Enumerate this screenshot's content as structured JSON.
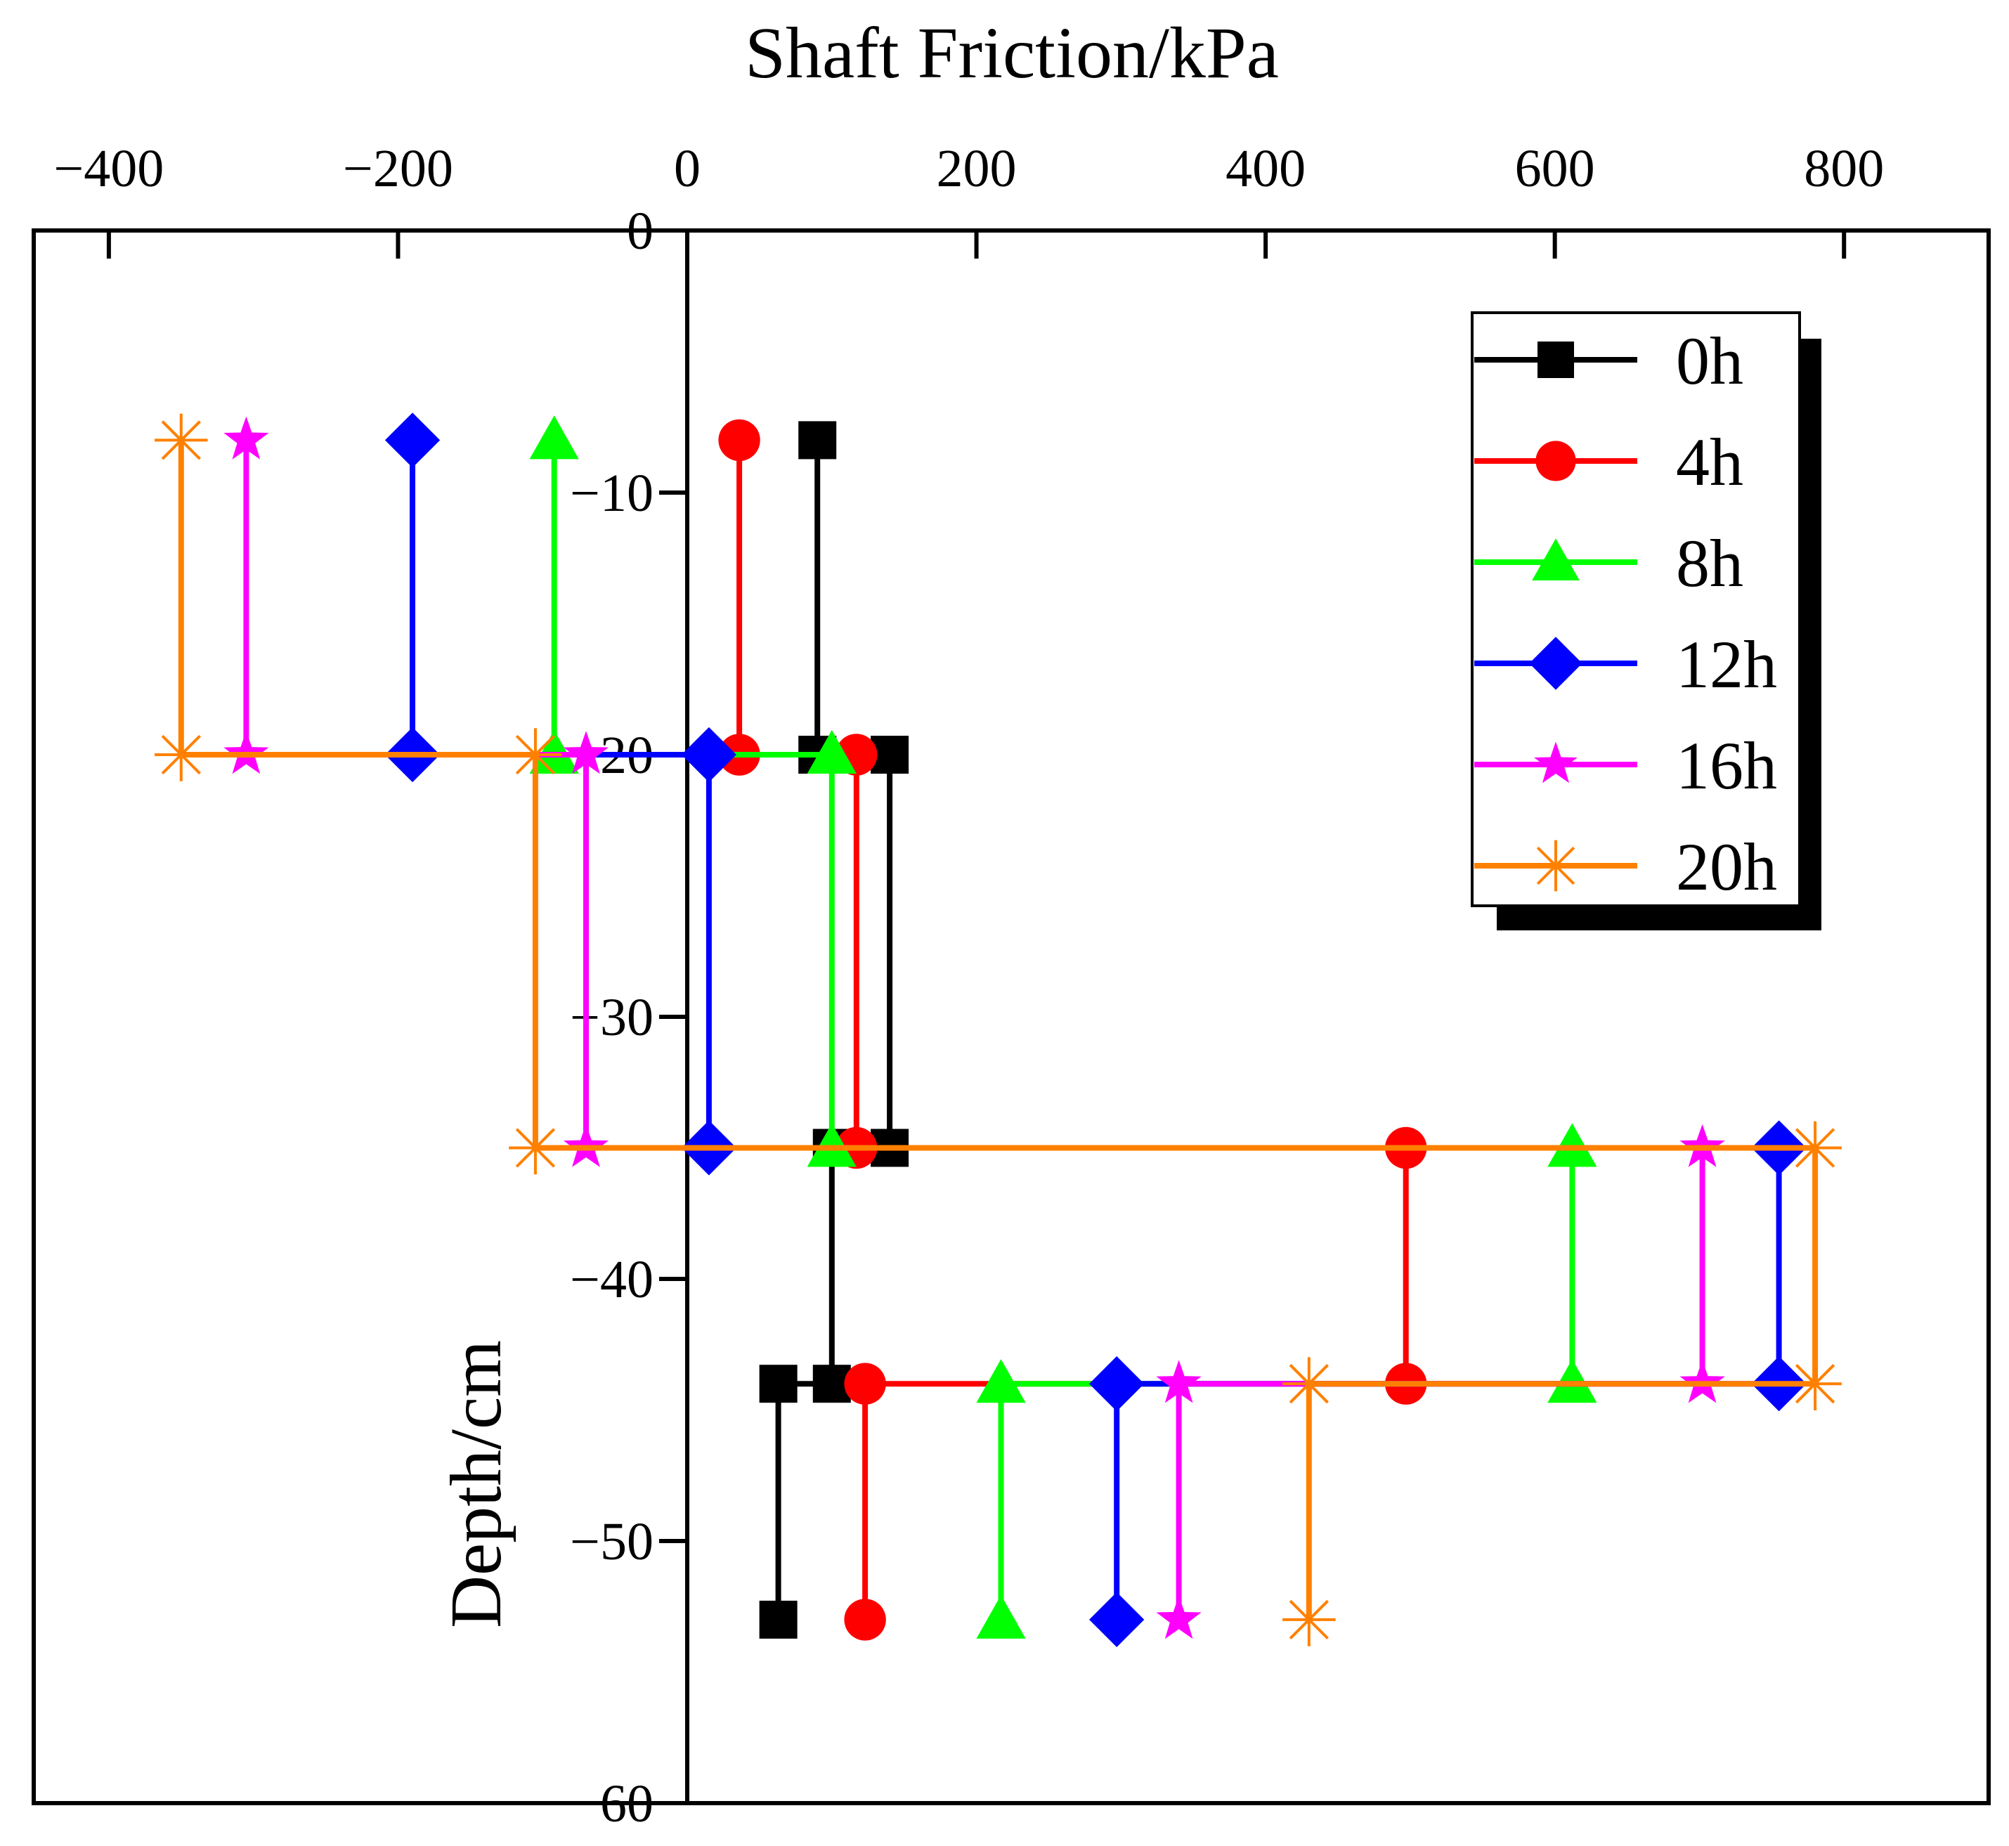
{
  "chart_data": {
    "type": "line",
    "title": "",
    "xlabel": "Shaft Friction/kPa",
    "ylabel": "Depth/cm",
    "xlim": [
      -450,
      900
    ],
    "ylim": [
      -60,
      0
    ],
    "x_ticks": [
      -400,
      -200,
      0,
      200,
      400,
      600,
      800
    ],
    "x_tick_labels": [
      "−400",
      "−200",
      "0",
      "200",
      "400",
      "600",
      "800"
    ],
    "y_ticks": [
      0,
      -10,
      -20,
      -30,
      -40,
      -50,
      -60
    ],
    "y_tick_labels": [
      "0",
      "−10",
      "−20",
      "−30",
      "−40",
      "−50",
      "−60"
    ],
    "legend_position": "top-right",
    "series": [
      {
        "name": "0h",
        "color": "#000000",
        "marker": "square",
        "x": [
          90,
          90,
          140,
          140,
          100,
          100,
          63,
          63
        ],
        "y": [
          -8,
          -20,
          -20,
          -35,
          -35,
          -44,
          -44,
          -53
        ]
      },
      {
        "name": "4h",
        "color": "#ff0000",
        "marker": "circle",
        "x": [
          36,
          36,
          117,
          117,
          497,
          497,
          123,
          123
        ],
        "y": [
          -8,
          -20,
          -20,
          -35,
          -35,
          -44,
          -44,
          -53
        ]
      },
      {
        "name": "8h",
        "color": "#00ff00",
        "marker": "triangle",
        "x": [
          -92,
          -92,
          100,
          100,
          612,
          612,
          217,
          217
        ],
        "y": [
          -8,
          -20,
          -20,
          -35,
          -35,
          -44,
          -44,
          -53
        ]
      },
      {
        "name": "12h",
        "color": "#0000ff",
        "marker": "diamond",
        "x": [
          -190,
          -190,
          15,
          15,
          755,
          755,
          297,
          297
        ],
        "y": [
          -8,
          -20,
          -20,
          -35,
          -35,
          -44,
          -44,
          -53
        ]
      },
      {
        "name": "16h",
        "color": "#ff00ff",
        "marker": "star",
        "x": [
          -305,
          -305,
          -70,
          -70,
          702,
          702,
          340,
          340
        ],
        "y": [
          -8,
          -20,
          -20,
          -35,
          -35,
          -44,
          -44,
          -53
        ]
      },
      {
        "name": "20h",
        "color": "#ff8000",
        "marker": "asterisk",
        "x": [
          -350,
          -350,
          -105,
          -105,
          780,
          780,
          430,
          430
        ],
        "y": [
          -8,
          -20,
          -20,
          -35,
          -35,
          -44,
          -44,
          -53
        ]
      }
    ]
  }
}
